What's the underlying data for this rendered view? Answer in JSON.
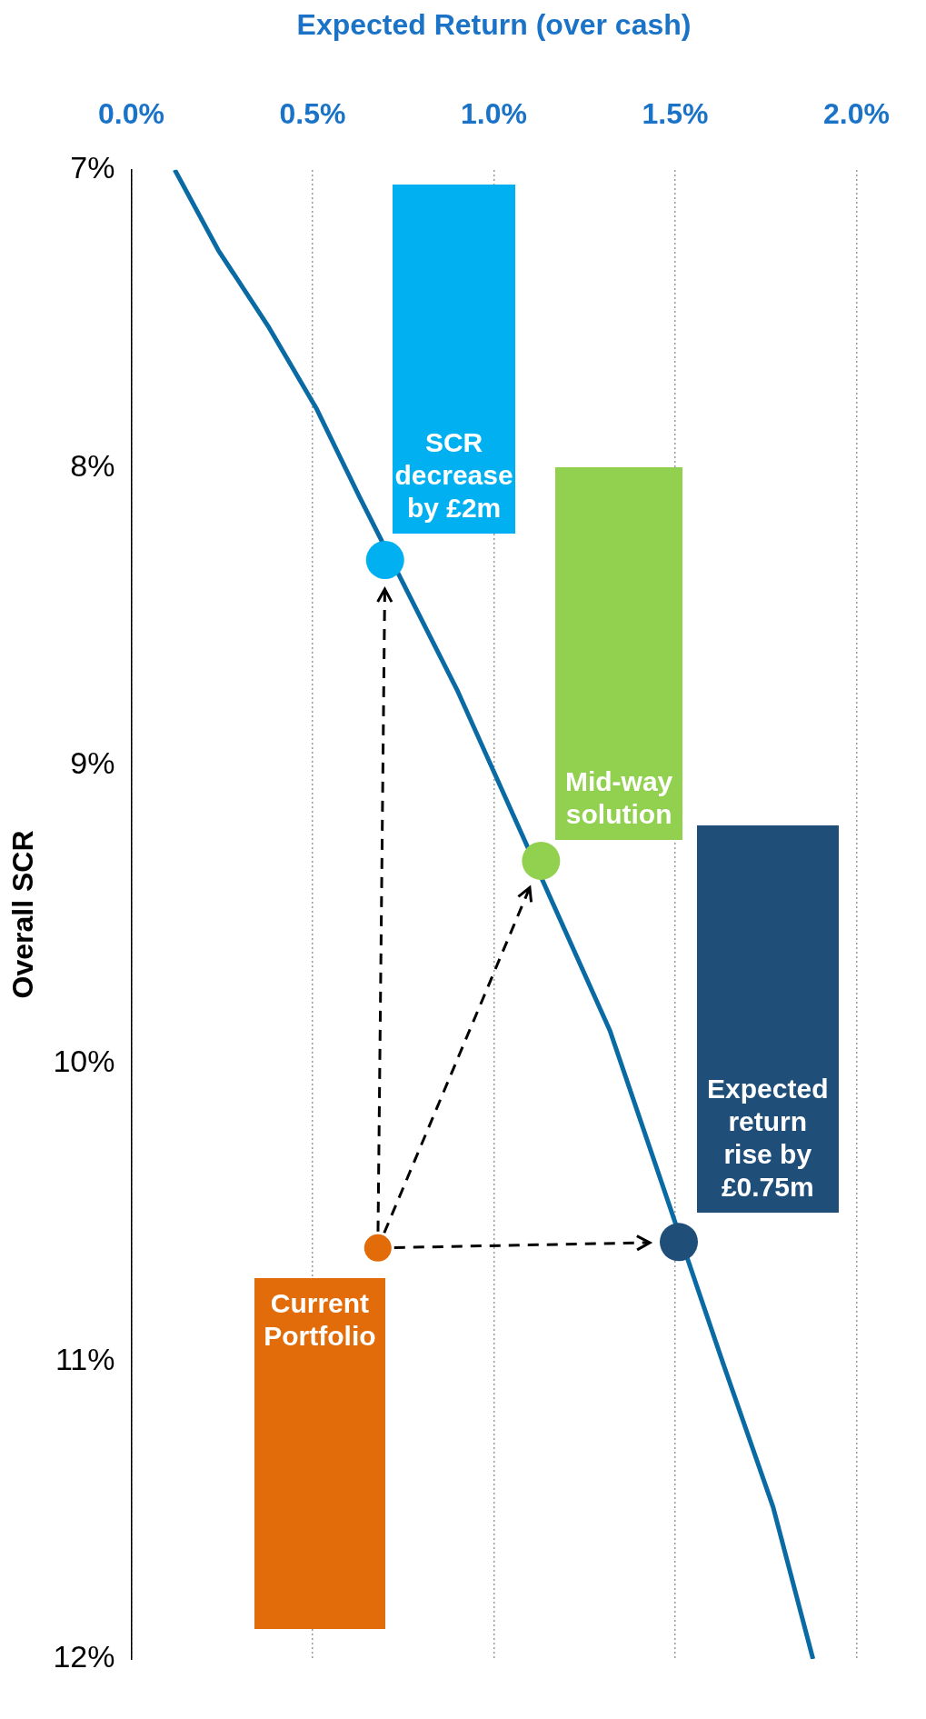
{
  "chart_data": {
    "type": "line",
    "xlabel": "Expected Return (over cash)",
    "ylabel": "Overall SCR",
    "xlim": [
      0,
      2
    ],
    "xticks": [
      {
        "value": 0,
        "label": "0.0%"
      },
      {
        "value": 0.5,
        "label": "0.5%"
      },
      {
        "value": 1,
        "label": "1.0%"
      },
      {
        "value": 1.5,
        "label": "1.5%"
      },
      {
        "value": 2,
        "label": "2.0%"
      }
    ],
    "ylim": [
      12,
      7
    ],
    "yticks": [
      {
        "value": 7,
        "label": "7%"
      },
      {
        "value": 8,
        "label": "8%"
      },
      {
        "value": 9,
        "label": "9%"
      },
      {
        "value": 10,
        "label": "10%"
      },
      {
        "value": 11,
        "label": "11%"
      },
      {
        "value": 12,
        "label": "12%"
      }
    ],
    "grid": "x",
    "legend": false,
    "series": [
      {
        "color": "#0a6aa3",
        "x": [
          0.12,
          0.24,
          0.38,
          0.51,
          0.63,
          0.9,
          1.32,
          1.63,
          1.77,
          1.88
        ],
        "values": [
          7.0,
          7.27,
          7.53,
          7.8,
          8.1,
          8.75,
          9.89,
          11.0,
          11.49,
          12.0
        ]
      },
      {
        "type": "scatter",
        "name": "SCR decrease by £2m",
        "color": "#00b0f0",
        "x": [
          0.7
        ],
        "values": [
          8.31
        ]
      },
      {
        "type": "scatter",
        "name": "Mid-way solution",
        "color": "#92d050",
        "x": [
          1.13
        ],
        "values": [
          9.32
        ]
      },
      {
        "type": "scatter",
        "name": "Expected return rise by £0.75m",
        "color": "#1f4e79",
        "x": [
          1.51
        ],
        "values": [
          10.6
        ]
      },
      {
        "type": "scatter",
        "name": "Current Portfolio",
        "color": "#e36c0a",
        "x": [
          0.68
        ],
        "values": [
          10.62
        ]
      }
    ]
  }
}
